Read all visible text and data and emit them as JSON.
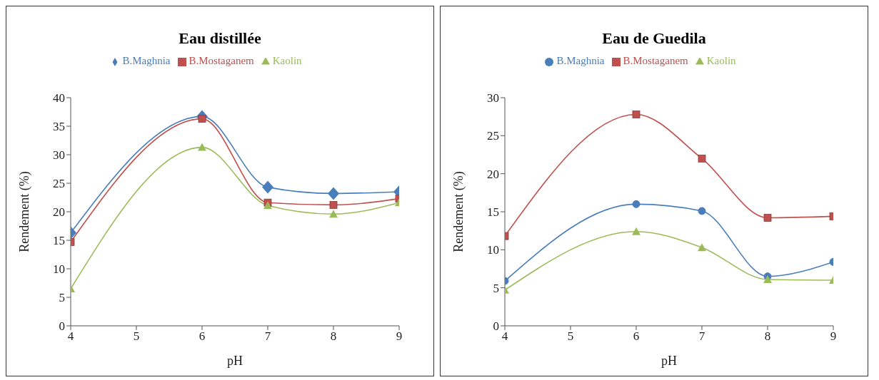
{
  "chart_data": [
    {
      "type": "line",
      "title": "Eau distillée",
      "xlabel": "pH",
      "ylabel": "Rendement (%)",
      "x": [
        4,
        6,
        7,
        8,
        9
      ],
      "xlim": [
        4,
        9
      ],
      "xticks": [
        4,
        5,
        6,
        7,
        8,
        9
      ],
      "ylim": [
        0,
        40
      ],
      "yticks": [
        0,
        5,
        10,
        15,
        20,
        25,
        30,
        35,
        40
      ],
      "legend": "top",
      "grid": false,
      "line_style": "solid",
      "series": [
        {
          "name": "B.Maghnia",
          "color": "#4a7ebb",
          "marker": "diamond",
          "values": [
            16.3,
            36.7,
            24.3,
            23.2,
            23.5
          ]
        },
        {
          "name": "B.Mostaganem",
          "color": "#c0504d",
          "marker": "square",
          "values": [
            14.7,
            36.3,
            21.6,
            21.2,
            22.3
          ]
        },
        {
          "name": "Kaolin",
          "color": "#9bbb59",
          "marker": "triangle",
          "values": [
            6.5,
            31.3,
            21.1,
            19.6,
            21.6
          ]
        }
      ]
    },
    {
      "type": "line",
      "title": "Eau de Guedila",
      "xlabel": "pH",
      "ylabel": "Rendement (%)",
      "x": [
        4,
        6,
        7,
        8,
        9
      ],
      "xlim": [
        4,
        9
      ],
      "xticks": [
        4,
        5,
        6,
        7,
        8,
        9
      ],
      "ylim": [
        0,
        30
      ],
      "yticks": [
        0,
        5,
        10,
        15,
        20,
        25,
        30
      ],
      "legend": "top",
      "grid": false,
      "line_style": "solid",
      "series": [
        {
          "name": "B.Maghnia",
          "color": "#4a7ebb",
          "marker": "circle",
          "values": [
            5.9,
            16.0,
            15.1,
            6.5,
            8.4
          ]
        },
        {
          "name": "B.Mostaganem",
          "color": "#c0504d",
          "marker": "square",
          "values": [
            11.8,
            27.8,
            22.0,
            14.2,
            14.4
          ]
        },
        {
          "name": "Kaolin",
          "color": "#9bbb59",
          "marker": "triangle",
          "values": [
            4.7,
            12.4,
            10.3,
            6.1,
            6.0
          ]
        }
      ]
    }
  ]
}
